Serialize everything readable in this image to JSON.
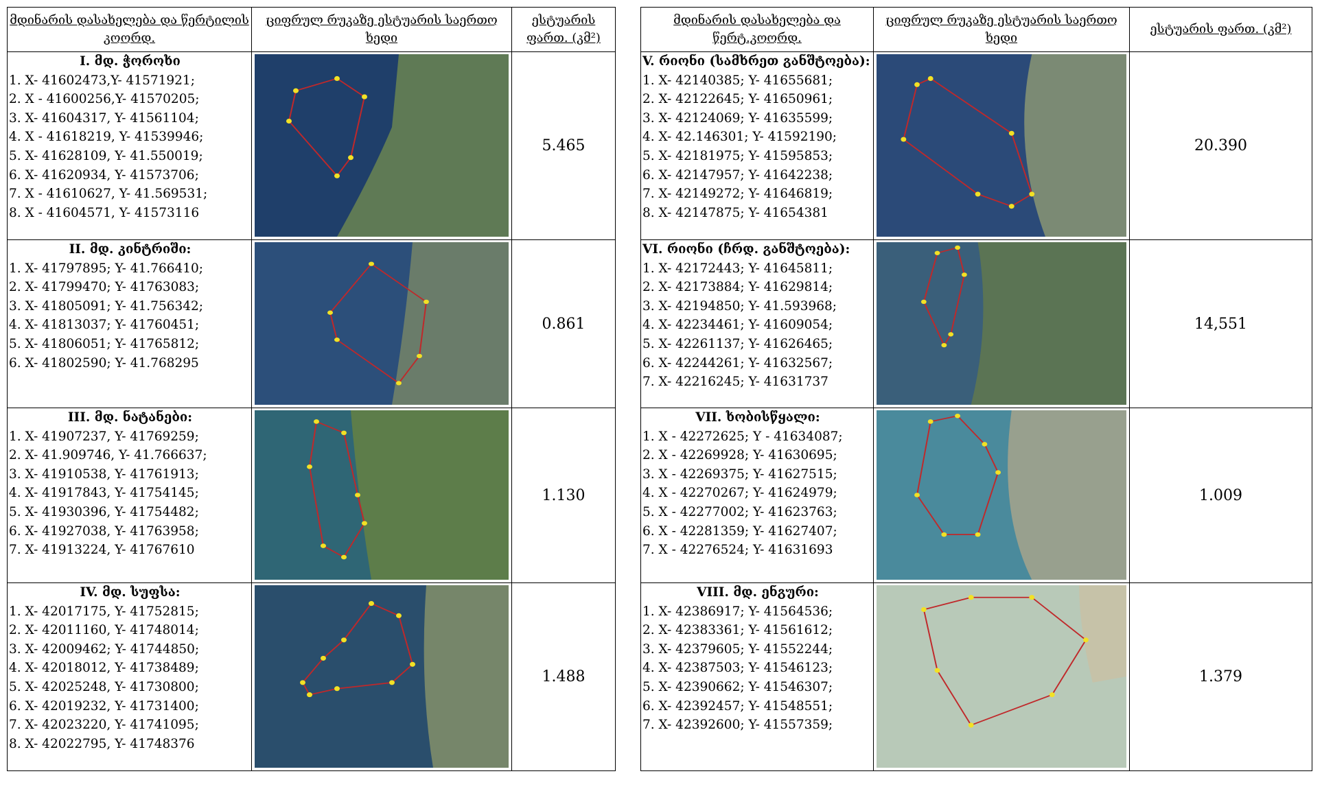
{
  "header": {
    "columns": [
      "მდინარის დასახელება და წერტილის კოორდ.",
      "ციფრულ რუკაზე ესტუარის საერთო ხედი",
      "ესტუარის ფართ. (კმ²)",
      "მდინარის დასახელება და წერტ.კოორდ.",
      "ციფრულ რუკაზე ესტუარის საერთო ხედი",
      "ესტუარის ფართ. (კმ²)"
    ]
  },
  "rows": [
    {
      "left": {
        "name": "I. მდ. ჭოროხი",
        "coords": [
          "1. X- 41602473,Y- 41571921;",
          "2. X - 41600256,Y- 41570205;",
          "3. X- 41604317, Y- 41561104;",
          "4. X - 41618219, Y- 41539946;",
          "5. X- 41628109, Y- 41.550019;",
          "6. X- 41620934, Y- 41573706;",
          "7. X - 41610627, Y- 41.569531;",
          "8. X - 41604571, Y- 41573116"
        ],
        "area": "5.465"
      },
      "right": {
        "name": "V. რიონი (სამხრეთ განშტოება):",
        "coords": [
          "1. X- 42140385; Y- 41655681;",
          "2. X- 42122645; Y- 41650961;",
          "3. X- 42124069; Y- 41635599;",
          "4. X- 42.146301; Y- 41592190;",
          "5. X- 42181975; Y- 41595853;",
          "6. X- 42147957; Y- 41642238;",
          "7. X- 42149272; Y- 41646819;",
          "8. X- 42147875; Y- 41654381"
        ],
        "area": "20.390"
      }
    },
    {
      "left": {
        "name": "II. მდ. კინტრიში:",
        "coords": [
          "1. X- 41797895; Y- 41.766410;",
          "2. X- 41799470; Y- 41763083;",
          "3. X- 41805091; Y- 41.756342;",
          "4. X- 41813037; Y- 41760451;",
          "5. X- 41806051; Y- 41765812;",
          "6. X- 41802590; Y- 41.768295"
        ],
        "area": "0.861"
      },
      "right": {
        "name": "VI. რიონი (ჩრდ. განშტოება):",
        "coords": [
          "1. X- 42172443; Y- 41645811;",
          "2. X- 42173884; Y- 41629814;",
          "3. X- 42194850; Y- 41.593968;",
          "4. X- 42234461; Y- 41609054;",
          "5. X- 42261137; Y- 41626465;",
          "6. X- 42244261; Y- 41632567;",
          "7. X- 42216245; Y- 41631737"
        ],
        "area": "14,551"
      }
    },
    {
      "left": {
        "name": "III. მდ. ნატანები:",
        "coords": [
          "1. X- 41907237, Y- 41769259;",
          "2. X- 41.909746, Y- 41.766637;",
          "3. X- 41910538, Y- 41761913;",
          "4. X- 41917843, Y- 41754145;",
          "5. X- 41930396, Y- 41754482;",
          "6. X- 41927038, Y- 41763958;",
          "7. X- 41913224, Y- 41767610"
        ],
        "area": "1.130"
      },
      "right": {
        "name": "VII. ხობისწყალი:",
        "coords": [
          "1. X - 42272625; Y - 41634087;",
          "2. X - 42269928; Y- 41630695;",
          "3. X - 42269375; Y- 41627515;",
          "4. X - 42270267; Y- 41624979;",
          "5. X - 42277002; Y- 41623763;",
          "6. X - 42281359; Y- 41627407;",
          "7. X - 42276524; Y- 41631693"
        ],
        "area": "1.009"
      }
    },
    {
      "left": {
        "name": "IV. მდ. სუფსა:",
        "coords": [
          "1. X- 42017175, Y- 41752815;",
          "2. X- 42011160, Y- 41748014;",
          "3. X- 42009462; Y- 41744850;",
          "4. X- 42018012, Y- 41738489;",
          "5. X- 42025248, Y- 41730800;",
          "6. X- 42019232, Y- 41731400;",
          "7. X- 42023220, Y- 41741095;",
          "8. X- 42022795, Y- 41748376"
        ],
        "area": "1.488"
      },
      "right": {
        "name": "VIII. მდ. ენგური:",
        "coords": [
          "1. X- 42386917; Y- 41564536;",
          "2. X- 42383361; Y- 41561612;",
          "3. X- 42379605; Y- 41552244;",
          "4. X- 42387503; Y- 41546123;",
          "5. X- 42390662; Y- 41546307;",
          "6. X- 42392457; Y- 41548551;",
          "7. X- 42392600; Y- 41557359;"
        ],
        "area": "1.379"
      }
    }
  ]
}
